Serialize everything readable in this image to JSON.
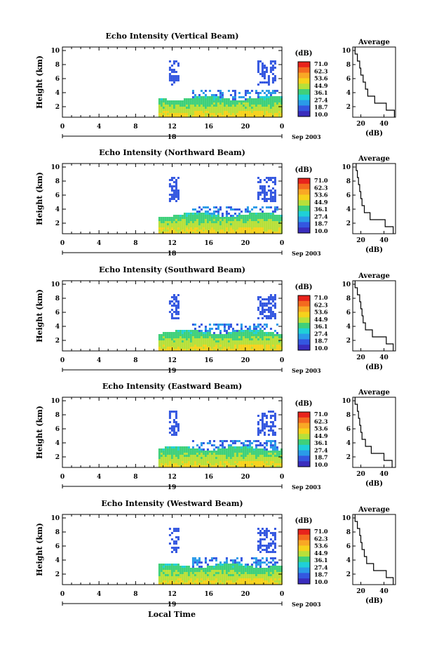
{
  "figure": {
    "xlabel": "Local Time",
    "date_suffix": "Sep 2003"
  },
  "colorbar": {
    "unit": "(dB)",
    "ticks": [
      "71.0",
      "62.3",
      "53.6",
      "44.9",
      "36.1",
      "27.4",
      "18.7",
      "10.0"
    ],
    "colors": [
      "#e8231c",
      "#f46a1f",
      "#f9a825",
      "#f6d21c",
      "#b7e03a",
      "#3fd07a",
      "#1fd0d8",
      "#2a9be8",
      "#3457e0",
      "#3a2dbd"
    ]
  },
  "chart_data": [
    {
      "type": "heatmap",
      "title": "Echo Intensity (Vertical Beam)",
      "ylabel": "Height (km)",
      "xlim": [
        0,
        24
      ],
      "ylim": [
        0.5,
        10.5
      ],
      "xticks": [
        "0",
        "4",
        "8",
        "12",
        "16",
        "20",
        "0"
      ],
      "yticks": [
        "2",
        "4",
        "6",
        "8",
        "10"
      ],
      "day_label": "18",
      "data_start_hour": 10.5,
      "avg": {
        "title": "Average",
        "xlabel": "(dB)",
        "xticks": [
          "20",
          "40"
        ],
        "xlim": [
          13,
          50
        ],
        "profile": [
          [
            1,
            49
          ],
          [
            2,
            42
          ],
          [
            3,
            32
          ],
          [
            4,
            26
          ],
          [
            5,
            24
          ],
          [
            6,
            22
          ],
          [
            7,
            20
          ],
          [
            8,
            19
          ],
          [
            9,
            17
          ],
          [
            10,
            15
          ]
        ]
      }
    },
    {
      "type": "heatmap",
      "title": "Echo Intensity (Northward Beam)",
      "ylabel": "Height (km)",
      "xlim": [
        0,
        24
      ],
      "ylim": [
        0.5,
        10.5
      ],
      "xticks": [
        "0",
        "4",
        "8",
        "12",
        "16",
        "20",
        "0"
      ],
      "yticks": [
        "2",
        "4",
        "6",
        "8",
        "10"
      ],
      "day_label": "18",
      "data_start_hour": 10.5,
      "avg": {
        "title": "Average",
        "xlabel": "(dB)",
        "xticks": [
          "20",
          "40"
        ],
        "xlim": [
          13,
          50
        ],
        "profile": [
          [
            1,
            48
          ],
          [
            2,
            41
          ],
          [
            3,
            28
          ],
          [
            4,
            23
          ],
          [
            5,
            21
          ],
          [
            6,
            20
          ],
          [
            7,
            19
          ],
          [
            8,
            18
          ],
          [
            9,
            17
          ],
          [
            10,
            16
          ]
        ]
      }
    },
    {
      "type": "heatmap",
      "title": "Echo Intensity (Southward Beam)",
      "ylabel": "Height (km)",
      "xlim": [
        0,
        24
      ],
      "ylim": [
        0.5,
        10.5
      ],
      "xticks": [
        "0",
        "4",
        "8",
        "12",
        "16",
        "20",
        "0"
      ],
      "yticks": [
        "2",
        "4",
        "6",
        "8",
        "10"
      ],
      "day_label": "19",
      "data_start_hour": 10.5,
      "avg": {
        "title": "Average",
        "xlabel": "(dB)",
        "xticks": [
          "20",
          "40"
        ],
        "xlim": [
          13,
          50
        ],
        "profile": [
          [
            1,
            48
          ],
          [
            2,
            42
          ],
          [
            3,
            30
          ],
          [
            4,
            24
          ],
          [
            5,
            22
          ],
          [
            6,
            21
          ],
          [
            7,
            20
          ],
          [
            8,
            19
          ],
          [
            9,
            17
          ],
          [
            10,
            15
          ]
        ]
      }
    },
    {
      "type": "heatmap",
      "title": "Echo Intensity (Eastward Beam)",
      "ylabel": "Height (km)",
      "xlim": [
        0,
        24
      ],
      "ylim": [
        0.5,
        10.5
      ],
      "xticks": [
        "0",
        "4",
        "8",
        "12",
        "16",
        "20",
        "0"
      ],
      "yticks": [
        "2",
        "4",
        "6",
        "8",
        "10"
      ],
      "day_label": "19",
      "data_start_hour": 10.5,
      "avg": {
        "title": "Average",
        "xlabel": "(dB)",
        "xticks": [
          "20",
          "40"
        ],
        "xlim": [
          13,
          50
        ],
        "profile": [
          [
            1,
            47
          ],
          [
            2,
            40
          ],
          [
            3,
            29
          ],
          [
            4,
            24
          ],
          [
            5,
            21
          ],
          [
            6,
            20
          ],
          [
            7,
            19
          ],
          [
            8,
            18
          ],
          [
            9,
            17
          ],
          [
            10,
            15
          ]
        ]
      }
    },
    {
      "type": "heatmap",
      "title": "Echo Intensity (Westward Beam)",
      "ylabel": "Height (km)",
      "xlim": [
        0,
        24
      ],
      "ylim": [
        0.5,
        10.5
      ],
      "xticks": [
        "0",
        "4",
        "8",
        "12",
        "16",
        "20",
        "0"
      ],
      "yticks": [
        "2",
        "4",
        "6",
        "8",
        "10"
      ],
      "day_label": "19",
      "data_start_hour": 10.5,
      "avg": {
        "title": "Average",
        "xlabel": "(dB)",
        "xticks": [
          "20",
          "40"
        ],
        "xlim": [
          13,
          50
        ],
        "profile": [
          [
            1,
            48
          ],
          [
            2,
            42
          ],
          [
            3,
            31
          ],
          [
            4,
            25
          ],
          [
            5,
            23
          ],
          [
            6,
            21
          ],
          [
            7,
            20
          ],
          [
            8,
            19
          ],
          [
            9,
            17
          ],
          [
            10,
            15
          ]
        ]
      }
    }
  ]
}
